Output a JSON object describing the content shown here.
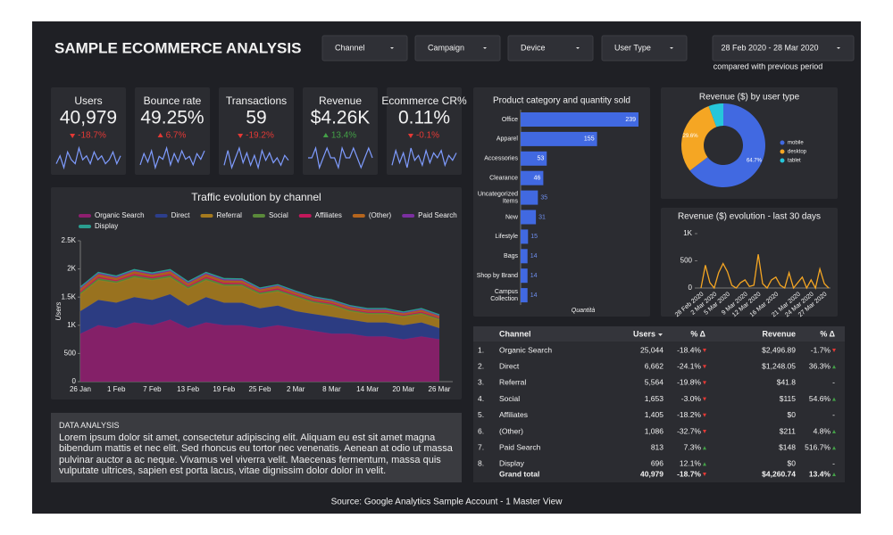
{
  "header": {
    "title": "SAMPLE ECOMMERCE ANALYSIS",
    "filters": [
      "Channel",
      "Campaign",
      "Device",
      "User Type"
    ],
    "date_range": "28 Feb 2020 - 28 Mar 2020",
    "comparison": "compared with previous period"
  },
  "scorecards": [
    {
      "label": "Users",
      "value": "40,979",
      "delta": "-18.7%",
      "direction": "down",
      "delta_color": "#e53935",
      "sparkline": [
        5,
        7,
        4,
        8,
        6,
        5,
        9,
        6,
        7,
        5,
        8,
        6,
        7,
        5,
        6,
        8,
        5,
        7
      ]
    },
    {
      "label": "Bounce rate",
      "value": "49.25%",
      "delta": "6.7%",
      "direction": "up",
      "delta_color": "#e53935",
      "sparkline": [
        4,
        8,
        5,
        9,
        3,
        7,
        6,
        10,
        4,
        8,
        5,
        9,
        6,
        7,
        4,
        8,
        6,
        9
      ]
    },
    {
      "label": "Transactions",
      "value": "59",
      "delta": "-19.2%",
      "direction": "down",
      "delta_color": "#e53935",
      "sparkline": [
        3,
        9,
        2,
        6,
        10,
        4,
        8,
        3,
        7,
        2,
        9,
        5,
        8,
        4,
        6,
        3,
        7,
        5
      ]
    },
    {
      "label": "Revenue",
      "value": "$4.26K",
      "delta": "13.4%",
      "direction": "up",
      "delta_color": "#43a047",
      "sparkline": [
        5,
        5,
        6,
        4,
        5,
        6,
        5,
        5,
        4,
        6,
        5,
        5,
        6,
        5,
        4,
        5,
        6,
        5
      ]
    },
    {
      "label": "Ecommerce CR%",
      "value": "0.11%",
      "delta": "-0.1%",
      "direction": "down",
      "delta_color": "#e53935",
      "sparkline": [
        3,
        9,
        4,
        8,
        2,
        10,
        5,
        7,
        3,
        9,
        4,
        8,
        6,
        9,
        3,
        7,
        5,
        8
      ]
    }
  ],
  "chart_data": [
    {
      "type": "area",
      "stacked": true,
      "title": "Traffic evolution by channel",
      "y_label": "Users",
      "legend": "top",
      "categories": [
        "26 Jan",
        null,
        "1 Feb",
        null,
        "7 Feb",
        null,
        "13 Feb",
        null,
        "19 Feb",
        null,
        "25 Feb",
        null,
        "2 Mar",
        null,
        "8 Mar",
        null,
        "14 Mar",
        null,
        "20 Mar",
        null,
        "26 Mar"
      ],
      "ylim": [
        0,
        2500
      ],
      "yticks": [
        0,
        500,
        {
          "value": 1000,
          "label": "1K"
        },
        {
          "value": 1500,
          "label": "1.5K"
        },
        {
          "value": 2000,
          "label": "2K"
        },
        {
          "value": 2500,
          "label": "2.5K"
        }
      ],
      "series": [
        {
          "name": "Organic Search",
          "color": "#8e1f6f",
          "values": [
            850,
            1000,
            950,
            1050,
            1000,
            1100,
            950,
            1050,
            1000,
            1000,
            950,
            1000,
            950,
            900,
            850,
            850,
            800,
            800,
            750,
            800,
            750
          ]
        },
        {
          "name": "Direct",
          "color": "#2c3e8c",
          "values": [
            400,
            450,
            450,
            450,
            450,
            450,
            400,
            450,
            400,
            400,
            350,
            350,
            300,
            300,
            300,
            250,
            250,
            250,
            250,
            250,
            200
          ]
        },
        {
          "name": "Referral",
          "color": "#a57a1e",
          "values": [
            300,
            350,
            350,
            350,
            350,
            300,
            300,
            300,
            300,
            300,
            250,
            250,
            250,
            200,
            200,
            150,
            150,
            150,
            150,
            150,
            150
          ]
        },
        {
          "name": "Social",
          "color": "#5a8a3a",
          "values": [
            30,
            35,
            30,
            35,
            30,
            35,
            30,
            35,
            30,
            30,
            30,
            30,
            25,
            25,
            25,
            25,
            20,
            20,
            20,
            20,
            20
          ]
        },
        {
          "name": "Affiliates",
          "color": "#c2185b",
          "values": [
            25,
            25,
            20,
            25,
            25,
            25,
            20,
            25,
            25,
            20,
            20,
            25,
            20,
            20,
            20,
            20,
            20,
            20,
            15,
            20,
            15
          ]
        },
        {
          "name": "(Other)",
          "color": "#b5651d",
          "values": [
            40,
            45,
            40,
            45,
            40,
            45,
            40,
            45,
            40,
            40,
            35,
            40,
            35,
            35,
            30,
            30,
            30,
            30,
            25,
            30,
            25
          ]
        },
        {
          "name": "Paid Search",
          "color": "#7b2fa0",
          "values": [
            20,
            20,
            20,
            20,
            20,
            20,
            20,
            20,
            20,
            20,
            15,
            15,
            15,
            15,
            15,
            15,
            15,
            15,
            15,
            15,
            15
          ]
        },
        {
          "name": "Display",
          "color": "#2a9d8f",
          "values": [
            15,
            15,
            15,
            15,
            15,
            15,
            15,
            15,
            15,
            15,
            12,
            12,
            12,
            12,
            12,
            12,
            12,
            12,
            12,
            12,
            12
          ]
        }
      ]
    },
    {
      "type": "bar",
      "orientation": "horizontal",
      "title": "Product category and quantity sold",
      "x_label": "Quantità",
      "color": "#4169e1",
      "categories": [
        "Office",
        "Apparel",
        "Accessories",
        "Clearance",
        "Uncategorized Items",
        "New",
        "Lifestyle",
        "Bags",
        "Shop by Brand",
        "Campus Collection"
      ],
      "values": [
        239,
        155,
        53,
        46,
        35,
        31,
        15,
        14,
        14,
        14
      ]
    },
    {
      "type": "donut",
      "title": "Revenue ($) by user type",
      "legend": "right",
      "categories": [
        "mobile",
        "desktop",
        "tablet"
      ],
      "values": [
        64.7,
        29.6,
        5.7
      ],
      "value_labels": [
        "64.7%",
        "29.6%",
        null
      ],
      "colors": [
        "#4169e1",
        "#f5a623",
        "#26c6da"
      ]
    },
    {
      "type": "line",
      "title": "Revenue ($) evolution - last 30 days",
      "color": "#f5a623",
      "categories": [
        "28 Feb 2020",
        null,
        null,
        "2 Mar 2020",
        null,
        null,
        "5 Mar 2020",
        null,
        null,
        null,
        "9 Mar 2020",
        null,
        null,
        "12 Mar 2020",
        null,
        null,
        null,
        "16 Mar 2020",
        null,
        null,
        null,
        null,
        "21 Mar 2020",
        null,
        null,
        "24 Mar 2020",
        null,
        null,
        "27 Mar 2020",
        null
      ],
      "values": [
        0,
        420,
        100,
        0,
        280,
        450,
        300,
        50,
        0,
        100,
        150,
        30,
        50,
        620,
        80,
        0,
        150,
        200,
        50,
        0,
        280,
        0,
        100,
        200,
        0,
        150,
        0,
        350,
        80,
        0
      ],
      "ylim": [
        0,
        1000
      ],
      "yticks": [
        0,
        500,
        {
          "value": 1000,
          "label": "1K"
        }
      ]
    }
  ],
  "table": {
    "header": [
      "Channel",
      "Users",
      "% Δ",
      "Revenue",
      "% Δ"
    ],
    "rows": [
      [
        "1.",
        "Organic Search",
        "25,044",
        "-18.4%",
        "$2,496.89",
        "-1.7%"
      ],
      [
        "2.",
        "Direct",
        "6,662",
        "-24.1%",
        "$1,248.05",
        "36.3%"
      ],
      [
        "3.",
        "Referral",
        "5,564",
        "-19.8%",
        "$41.8",
        "-"
      ],
      [
        "4.",
        "Social",
        "1,653",
        "-3.0%",
        "$115",
        "54.6%"
      ],
      [
        "5.",
        "Affiliates",
        "1,405",
        "-18.2%",
        "$0",
        "-"
      ],
      [
        "6.",
        "(Other)",
        "1,086",
        "-32.7%",
        "$211",
        "4.8%"
      ],
      [
        "7.",
        "Paid Search",
        "813",
        "7.3%",
        "$148",
        "516.7%"
      ],
      [
        "8.",
        "Display",
        "696",
        "12.1%",
        "$0",
        "-"
      ]
    ],
    "total": [
      "Grand total",
      "40,979",
      "-18.7%",
      "$4,260.74",
      "13.4%"
    ]
  },
  "analysis": {
    "title": "DATA ANALYSIS",
    "text": "Lorem ipsum dolor sit amet, consectetur adipiscing elit. Aliquam eu est sit amet magna bibendum mattis et nec elit. Sed rhoncus eu tortor nec venenatis. Aenean at odio ut massa pulvinar auctor a ac neque. Vivamus vel viverra velit. Maecenas fermentum, massa quis vulputate ultrices, sapien est porta lacus, vitae dignissim dolor dolor in velit."
  },
  "footer": "Source: Google Analytics Sample Account - 1 Master View"
}
